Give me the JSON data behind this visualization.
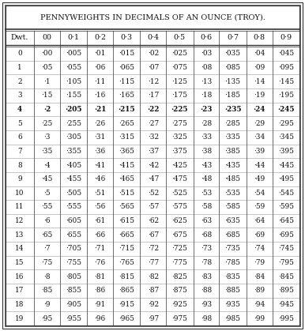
{
  "title": "PENNYWEIGHTS IN DECIMALS OF AN OUNCE (TROY).",
  "col_headers": [
    "Dwt.",
    "00",
    "0·1",
    "0·2",
    "0·3",
    "0·4",
    "0·5",
    "0·6",
    "0·7",
    "0·8",
    "0·9"
  ],
  "rows": [
    [
      0,
      "·00",
      "·005",
      "·01",
      "·015",
      "·02",
      "·025",
      "·03",
      "·035",
      "·04",
      "·045"
    ],
    [
      1,
      "·05",
      "·055",
      "·06",
      "·065",
      "·07",
      "·075",
      "·08",
      "·085",
      "·09",
      "·095"
    ],
    [
      2,
      "·1",
      "·105",
      "·11",
      "·115",
      "·12",
      "·125",
      "·13",
      "·135",
      "·14",
      "·145"
    ],
    [
      3,
      "·15",
      "·155",
      "·16",
      "·165",
      "·17",
      "·175",
      "·18",
      "·185",
      "·19",
      "·195"
    ],
    [
      4,
      "·2",
      "·205",
      "·21",
      "·215",
      "·22",
      "·225",
      "·23",
      "·235",
      "·24",
      "·245"
    ],
    [
      5,
      "·25",
      "·255",
      "·26",
      "·265",
      "·27",
      "·275",
      "·28",
      "·285",
      "·29",
      "·295"
    ],
    [
      6,
      "·3",
      "·305",
      "·31",
      "·315",
      "·32",
      "·325",
      "·33",
      "·335",
      "·34",
      "·345"
    ],
    [
      7,
      "·35",
      "·355",
      "·36",
      "·365",
      "·37",
      "·375",
      "·38",
      "·385",
      "·39",
      "·395"
    ],
    [
      8,
      "·4",
      "·405",
      "·41",
      "·415",
      "·42",
      "·425",
      "·43",
      "·435",
      "·44",
      "·445"
    ],
    [
      9,
      "·45",
      "·455",
      "·46",
      "·465",
      "·47",
      "·475",
      "·48",
      "·485",
      "·49",
      "·495"
    ],
    [
      10,
      "·5",
      "·505",
      "·51",
      "·515",
      "·52",
      "·525",
      "·53",
      "·535",
      "·54",
      "·545"
    ],
    [
      11,
      "·55",
      "·555",
      "·56",
      "·565",
      "·57",
      "·575",
      "·58",
      "·585",
      "·59",
      "·595"
    ],
    [
      12,
      "·6",
      "·605",
      "·61",
      "·615",
      "·62",
      "·625",
      "·63",
      "·635",
      "·64",
      "·645"
    ],
    [
      13,
      "·65",
      "·655",
      "·66",
      "·665",
      "·67",
      "·675",
      "·68",
      "·685",
      "·69",
      "·695"
    ],
    [
      14,
      "·7",
      "·705",
      "·71",
      "·715",
      "·72",
      "·725",
      "·73",
      "·735",
      "·74",
      "·745"
    ],
    [
      15,
      "·75",
      "·755",
      "·76",
      "·765",
      "·77",
      "·775",
      "·78",
      "·785",
      "·79",
      "·795"
    ],
    [
      16,
      "·8",
      "·805",
      "·81",
      "·815",
      "·82",
      "·825",
      "·83",
      "·835",
      "·84",
      "·845"
    ],
    [
      17,
      "·85",
      "·855",
      "·86",
      "·865",
      "·87",
      "·875",
      "·88",
      "·885",
      "·89",
      "·895"
    ],
    [
      18,
      "·9",
      "·905",
      "·91",
      "·915",
      "·92",
      "·925",
      "·93",
      "·935",
      "·94",
      "·945"
    ],
    [
      19,
      "·95",
      "·955",
      "·96",
      "·965",
      "·97",
      "·975",
      "·98",
      "·985",
      "·99",
      "·995"
    ]
  ],
  "bold_rows": [
    4
  ],
  "bg_color": "#ffffff",
  "border_color": "#333333",
  "text_color": "#111111",
  "title_fontsize": 7.0,
  "header_fontsize": 6.8,
  "data_fontsize": 6.4
}
